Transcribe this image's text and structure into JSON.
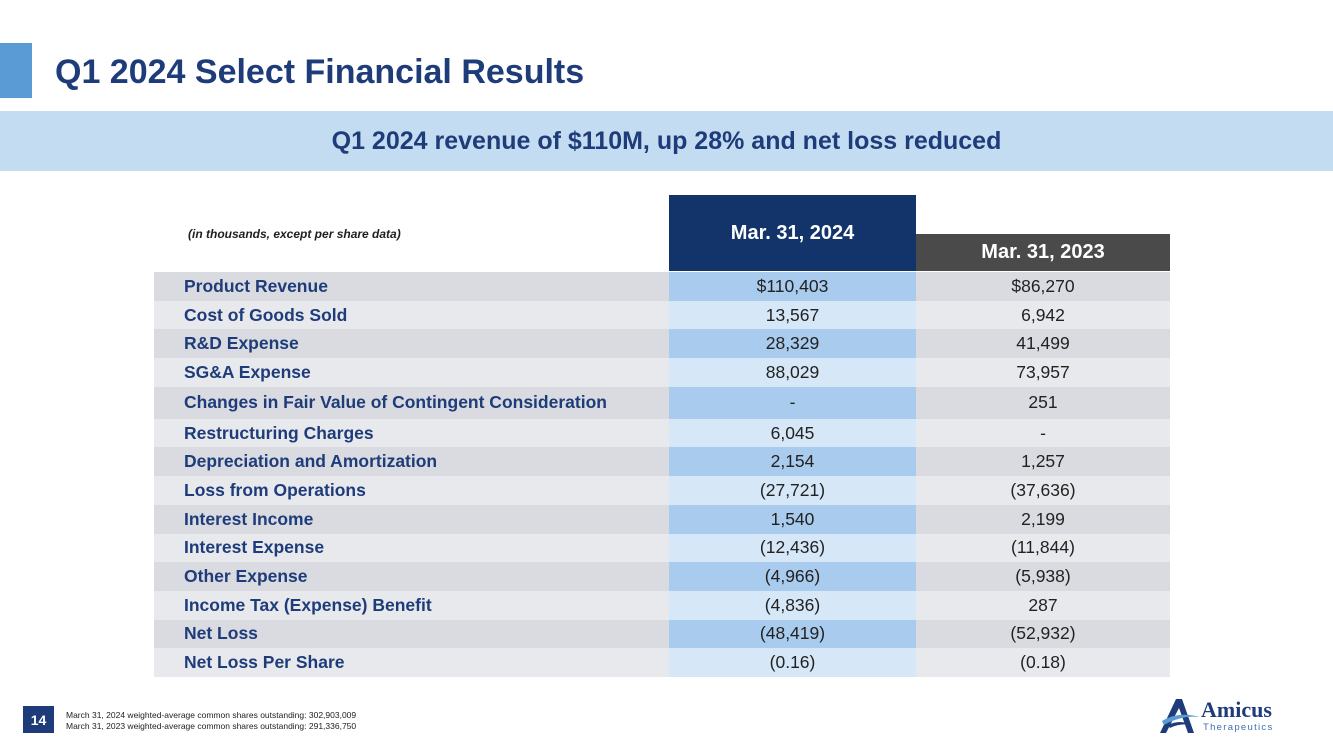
{
  "slide": {
    "title": "Q1 2024 Select Financial Results",
    "subtitle": "Q1 2024 revenue of $110M, up 28% and net loss reduced",
    "page_number": "14"
  },
  "table": {
    "units_note": "(in thousands, except per share data)",
    "columns": [
      "Mar. 31, 2024",
      "Mar. 31, 2023"
    ],
    "rows": [
      {
        "label": "Product Revenue",
        "q1_2024": "$110,403",
        "q1_2023": "$86,270"
      },
      {
        "label": "Cost of Goods Sold",
        "q1_2024": "13,567",
        "q1_2023": "6,942"
      },
      {
        "label": "R&D Expense",
        "q1_2024": "28,329",
        "q1_2023": "41,499"
      },
      {
        "label": "SG&A Expense",
        "q1_2024": "88,029",
        "q1_2023": "73,957"
      },
      {
        "label": "Changes in Fair Value of Contingent Consideration",
        "q1_2024": "-",
        "q1_2023": "251"
      },
      {
        "label": "Restructuring Charges",
        "q1_2024": "6,045",
        "q1_2023": "-"
      },
      {
        "label": "Depreciation and Amortization",
        "q1_2024": "2,154",
        "q1_2023": "1,257"
      },
      {
        "label": "Loss from Operations",
        "q1_2024": "(27,721)",
        "q1_2023": "(37,636)"
      },
      {
        "label": "Interest Income",
        "q1_2024": "1,540",
        "q1_2023": "2,199"
      },
      {
        "label": "Interest Expense",
        "q1_2024": "(12,436)",
        "q1_2023": "(11,844)"
      },
      {
        "label": "Other Expense",
        "q1_2024": "(4,966)",
        "q1_2023": "(5,938)"
      },
      {
        "label": "Income Tax (Expense) Benefit",
        "q1_2024": "(4,836)",
        "q1_2023": "287"
      },
      {
        "label": "Net Loss",
        "q1_2024": "(48,419)",
        "q1_2023": "(52,932)"
      },
      {
        "label": "Net Loss Per Share",
        "q1_2024": "(0.16)",
        "q1_2023": "(0.18)"
      }
    ]
  },
  "footnotes": [
    "March 31, 2024 weighted-average common shares outstanding: 302,903,009",
    "March 31, 2023 weighted-average common shares outstanding: 291,336,750"
  ],
  "logo": {
    "name": "Amicus",
    "tagline": "Therapeutics",
    "icon": "amicus-logo-icon"
  },
  "colors": {
    "title": "#1f3c7a",
    "banner": "#c4dcf1",
    "header_2024": "#13336b",
    "header_2023": "#4a4a4a",
    "accent": "#5b9bd5"
  }
}
